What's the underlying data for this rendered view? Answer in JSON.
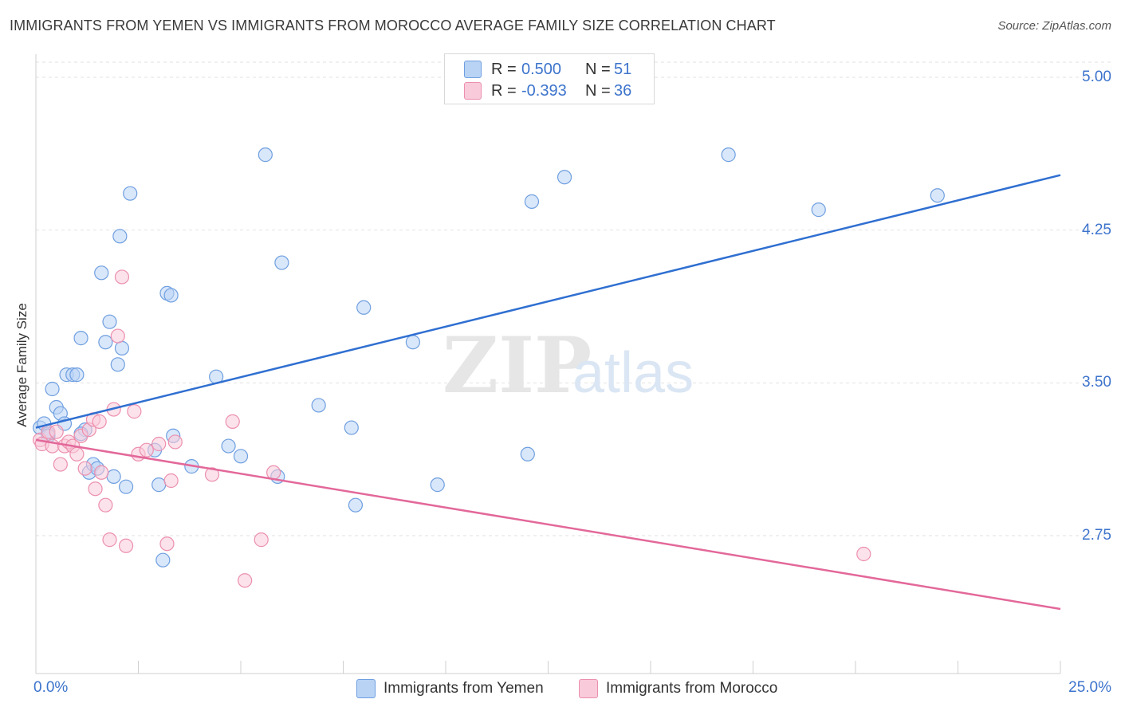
{
  "title": "IMMIGRANTS FROM YEMEN VS IMMIGRANTS FROM MOROCCO AVERAGE FAMILY SIZE CORRELATION CHART",
  "source": "Source: ZipAtlas.com",
  "watermark": {
    "zip": "ZIP",
    "atlas": "atlas"
  },
  "legend_top": {
    "rows": [
      {
        "r_label": "R =",
        "r_value": "0.500",
        "n_label": "N =",
        "n_value": "51"
      },
      {
        "r_label": "R =",
        "r_value": "-0.393",
        "n_label": "N =",
        "n_value": "36"
      }
    ]
  },
  "chart_data": {
    "type": "scatter",
    "title": "IMMIGRANTS FROM YEMEN VS IMMIGRANTS FROM MOROCCO AVERAGE FAMILY SIZE CORRELATION CHART",
    "xlabel": "",
    "ylabel": "Average Family Size",
    "xlim": [
      0,
      25
    ],
    "ylim": [
      2.0,
      5.1
    ],
    "x_tick_labels": [
      "0.0%",
      "25.0%"
    ],
    "y_ticks": [
      2.75,
      3.5,
      4.25,
      5.0
    ],
    "y_tick_labels": [
      "2.75",
      "3.50",
      "4.25",
      "5.00"
    ],
    "grid": true,
    "legend": "bottom",
    "colors": {
      "yemen": "#6f9fe0",
      "yemen_fill": "#b9d3f5",
      "morocco": "#ec8fae",
      "morocco_fill": "#f9cad9",
      "yemen_line": "#2f6fd1",
      "morocco_line": "#e3689a"
    },
    "series": [
      {
        "name": "Immigrants from Yemen",
        "points": [
          [
            0.1,
            3.28
          ],
          [
            0.2,
            3.3
          ],
          [
            0.3,
            3.25
          ],
          [
            0.4,
            3.47
          ],
          [
            0.5,
            3.38
          ],
          [
            0.6,
            3.35
          ],
          [
            0.7,
            3.3
          ],
          [
            0.75,
            3.54
          ],
          [
            0.9,
            3.54
          ],
          [
            1.0,
            3.54
          ],
          [
            1.1,
            3.72
          ],
          [
            1.2,
            3.27
          ],
          [
            1.3,
            3.06
          ],
          [
            1.4,
            3.1
          ],
          [
            1.5,
            3.08
          ],
          [
            1.6,
            4.04
          ],
          [
            1.7,
            3.7
          ],
          [
            1.8,
            3.8
          ],
          [
            1.9,
            3.04
          ],
          [
            2.0,
            3.59
          ],
          [
            2.1,
            3.67
          ],
          [
            2.2,
            2.99
          ],
          [
            2.3,
            4.43
          ],
          [
            2.9,
            3.17
          ],
          [
            3.0,
            3.0
          ],
          [
            3.1,
            2.63
          ],
          [
            3.2,
            3.94
          ],
          [
            3.3,
            3.93
          ],
          [
            3.35,
            3.24
          ],
          [
            3.8,
            3.09
          ],
          [
            4.4,
            3.53
          ],
          [
            4.7,
            3.19
          ],
          [
            5.0,
            3.14
          ],
          [
            5.6,
            4.62
          ],
          [
            5.9,
            3.04
          ],
          [
            6.0,
            4.09
          ],
          [
            6.9,
            3.39
          ],
          [
            7.7,
            3.28
          ],
          [
            7.8,
            2.9
          ],
          [
            8.0,
            3.87
          ],
          [
            9.2,
            3.7
          ],
          [
            9.8,
            3.0
          ],
          [
            12.0,
            3.15
          ],
          [
            12.1,
            4.39
          ],
          [
            12.9,
            4.51
          ],
          [
            16.9,
            4.62
          ],
          [
            19.1,
            4.35
          ],
          [
            22.0,
            4.42
          ],
          [
            2.05,
            4.22
          ],
          [
            1.1,
            3.25
          ],
          [
            0.3,
            3.24
          ]
        ]
      },
      {
        "name": "Immigrants from Morocco",
        "points": [
          [
            0.1,
            3.22
          ],
          [
            0.15,
            3.2
          ],
          [
            0.3,
            3.26
          ],
          [
            0.4,
            3.19
          ],
          [
            0.5,
            3.26
          ],
          [
            0.6,
            3.1
          ],
          [
            0.7,
            3.19
          ],
          [
            0.8,
            3.21
          ],
          [
            0.9,
            3.19
          ],
          [
            1.0,
            3.15
          ],
          [
            1.1,
            3.24
          ],
          [
            1.2,
            3.08
          ],
          [
            1.3,
            3.27
          ],
          [
            1.4,
            3.32
          ],
          [
            1.45,
            2.98
          ],
          [
            1.55,
            3.31
          ],
          [
            1.6,
            3.06
          ],
          [
            1.7,
            2.9
          ],
          [
            1.8,
            2.73
          ],
          [
            1.9,
            3.37
          ],
          [
            2.0,
            3.73
          ],
          [
            2.1,
            4.02
          ],
          [
            2.2,
            2.7
          ],
          [
            2.4,
            3.36
          ],
          [
            2.5,
            3.15
          ],
          [
            2.7,
            3.17
          ],
          [
            3.0,
            3.2
          ],
          [
            3.2,
            2.71
          ],
          [
            3.3,
            3.02
          ],
          [
            3.4,
            3.21
          ],
          [
            4.3,
            3.05
          ],
          [
            4.8,
            3.31
          ],
          [
            5.1,
            2.53
          ],
          [
            5.5,
            2.73
          ],
          [
            5.8,
            3.06
          ],
          [
            20.2,
            2.66
          ]
        ]
      }
    ],
    "trend_lines": [
      {
        "name": "Immigrants from Yemen",
        "x": [
          0,
          25
        ],
        "y": [
          3.28,
          4.52
        ]
      },
      {
        "name": "Immigrants from Morocco",
        "x": [
          0,
          25
        ],
        "y": [
          3.22,
          2.39
        ]
      }
    ]
  },
  "legend_bottom": {
    "items": [
      {
        "label": "Immigrants from Yemen"
      },
      {
        "label": "Immigrants from Morocco"
      }
    ]
  }
}
